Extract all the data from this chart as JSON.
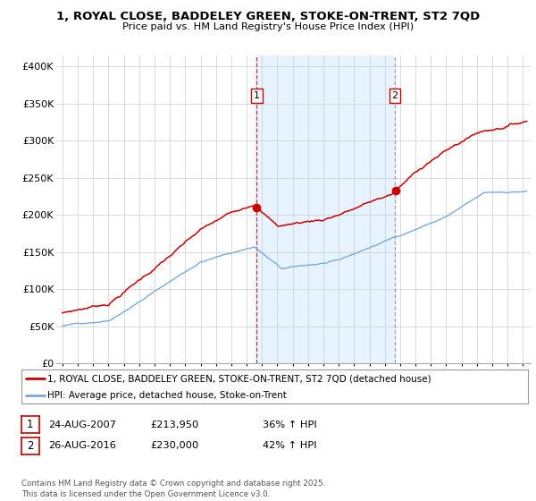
{
  "title": "1, ROYAL CLOSE, BADDELEY GREEN, STOKE-ON-TRENT, ST2 7QD",
  "subtitle": "Price paid vs. HM Land Registry's House Price Index (HPI)",
  "ylabel_ticks": [
    "£0",
    "£50K",
    "£100K",
    "£150K",
    "£200K",
    "£250K",
    "£300K",
    "£350K",
    "£400K"
  ],
  "ytick_values": [
    0,
    50000,
    100000,
    150000,
    200000,
    250000,
    300000,
    350000,
    400000
  ],
  "ylim": [
    0,
    415000
  ],
  "xlim_start": 1994.6,
  "xlim_end": 2025.5,
  "red_color": "#cc0000",
  "blue_color": "#7aaadd",
  "shade_color": "#ddeeff",
  "marker1_x": 2007.65,
  "marker1_y": 213950,
  "marker2_x": 2016.65,
  "marker2_y": 230000,
  "marker1_label": "1",
  "marker2_label": "2",
  "legend_line1": "1, ROYAL CLOSE, BADDELEY GREEN, STOKE-ON-TRENT, ST2 7QD (detached house)",
  "legend_line2": "HPI: Average price, detached house, Stoke-on-Trent",
  "footer": "Contains HM Land Registry data © Crown copyright and database right 2025.\nThis data is licensed under the Open Government Licence v3.0.",
  "background_color": "#ffffff",
  "grid_color": "#cccccc",
  "row1_num": "1",
  "row1_date": "24-AUG-2007",
  "row1_price": "£213,950",
  "row1_pct": "36% ↑ HPI",
  "row2_num": "2",
  "row2_date": "26-AUG-2016",
  "row2_price": "£230,000",
  "row2_pct": "42% ↑ HPI"
}
